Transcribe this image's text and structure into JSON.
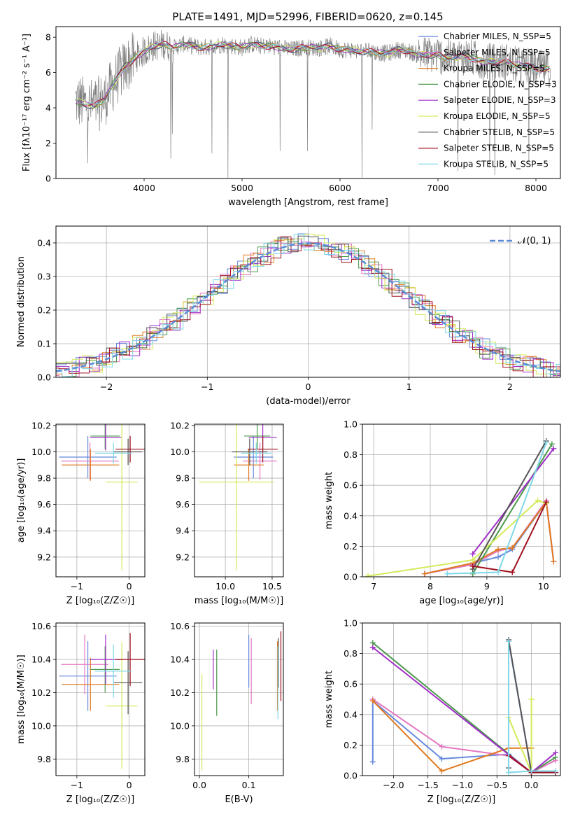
{
  "figure": {
    "title": "PLATE=1491, MJD=52996, FIBERID=0620, z=0.145"
  },
  "models": [
    {
      "name": "Chabrier MILES, N_SSP=5",
      "color": "#6688dd"
    },
    {
      "name": "Salpeter MILES, N_SSP=5",
      "color": "#e377c2"
    },
    {
      "name": "Kroupa MILES, N_SSP=5",
      "color": "#e07a20"
    },
    {
      "name": "Chabrier ELODIE, N_SSP=3",
      "color": "#4c9a4c"
    },
    {
      "name": "Salpeter ELODIE, N_SSP=3",
      "color": "#a12ec8"
    },
    {
      "name": "Kroupa ELODIE, N_SSP=5",
      "color": "#d4ea5a"
    },
    {
      "name": "Chabrier STELIB, N_SSP=5",
      "color": "#555555"
    },
    {
      "name": "Salpeter STELIB, N_SSP=5",
      "color": "#a01020"
    },
    {
      "name": "Kroupa STELIB, N_SSP=5",
      "color": "#7fd8e8"
    }
  ],
  "chart_data": [
    {
      "id": "spectrum",
      "type": "line",
      "xlabel": "wavelength [Angstrom, rest frame]",
      "ylabel": "Flux [fλ10⁻¹⁷ erg cm⁻² s⁻¹ A⁻¹]",
      "xlim": [
        3100,
        8250
      ],
      "ylim": [
        0,
        8.6
      ],
      "xticks": [
        "4000",
        "5000",
        "6000",
        "7000",
        "8000"
      ],
      "yticks": [
        "0",
        "2",
        "4",
        "6",
        "8"
      ],
      "data_color": "#808080",
      "data_x": [
        3300,
        3400,
        3500,
        3600,
        3700,
        3800,
        3900,
        4000,
        4100,
        4200,
        4300,
        4400,
        4500,
        4600,
        4700,
        4800,
        4900,
        5000,
        5100,
        5200,
        5300,
        5400,
        5500,
        5600,
        5700,
        5800,
        5900,
        6000,
        6100,
        6200,
        6300,
        6400,
        6500,
        6600,
        6700,
        6800,
        6900,
        7000,
        7100,
        7200,
        7300,
        7400,
        7500,
        7600,
        7700,
        7800,
        7900,
        8000,
        8100
      ],
      "data_y": [
        4.4,
        4.2,
        4.1,
        4.5,
        5.5,
        6.3,
        6.8,
        7.2,
        7.5,
        7.6,
        7.4,
        7.6,
        7.5,
        7.4,
        7.5,
        7.6,
        7.5,
        7.4,
        7.6,
        7.5,
        7.5,
        7.4,
        7.3,
        7.4,
        7.4,
        7.4,
        7.5,
        7.3,
        7.3,
        7.2,
        7.2,
        7.1,
        7.1,
        7.3,
        7.2,
        7.0,
        7.0,
        7.0,
        6.8,
        6.9,
        6.9,
        6.7,
        6.6,
        6.6,
        6.6,
        6.4,
        6.4,
        6.2,
        6.2
      ],
      "legend_position": "upper right",
      "grid": false
    },
    {
      "id": "residuals",
      "type": "step",
      "xlabel": "(data-model)/error",
      "ylabel": "Normed distribution",
      "xlim": [
        -2.5,
        2.5
      ],
      "ylim": [
        0,
        0.45
      ],
      "xticks": [
        "−2",
        "−1",
        "0",
        "1",
        "2"
      ],
      "yticks": [
        "0.0",
        "0.1",
        "0.2",
        "0.3",
        "0.4"
      ],
      "reference_curve": {
        "name": "𝒩(0, 1)",
        "mean": 0,
        "sigma": 1,
        "color": "#5b8bd6"
      },
      "legend_position": "upper right",
      "grid": true
    },
    {
      "id": "age_vs_Z",
      "type": "errorbar",
      "xlabel": "Z [log₁₀(Z/Z☉)]",
      "ylabel": "age  [log₁₀(age/yr)]",
      "xlim": [
        -1.4,
        0.3
      ],
      "ylim": [
        9.05,
        10.21
      ],
      "xticks": [
        "−1",
        "0"
      ],
      "yticks": [
        "9.2",
        "9.4",
        "9.6",
        "9.8",
        "10.0",
        "10.2"
      ],
      "grid": true,
      "points": [
        {
          "x": -0.79,
          "xerr": 0.55,
          "y": 9.96,
          "yerr": 0.16
        },
        {
          "x": -0.75,
          "xerr": 0.55,
          "y": 9.93,
          "yerr": 0.14
        },
        {
          "x": -0.74,
          "xerr": 0.55,
          "y": 9.9,
          "yerr": 0.12
        },
        {
          "x": -0.46,
          "xerr": 0.28,
          "y": 10.12,
          "yerr": 0.1
        },
        {
          "x": -0.45,
          "xerr": 0.3,
          "y": 10.11,
          "yerr": 0.1
        },
        {
          "x": -0.14,
          "xerr": 0.3,
          "y": 9.77,
          "yerr": 0.67
        },
        {
          "x": -0.02,
          "xerr": 0.27,
          "y": 10.0,
          "yerr": 0.1
        },
        {
          "x": 0.02,
          "xerr": 0.28,
          "y": 10.02,
          "yerr": 0.1
        },
        {
          "x": -0.3,
          "xerr": 0.35,
          "y": 9.99,
          "yerr": 0.08
        }
      ]
    },
    {
      "id": "age_vs_mass",
      "type": "errorbar",
      "xlabel": "mass [log₁₀(M/M☉)]",
      "ylabel": "",
      "xlim": [
        9.67,
        10.62
      ],
      "ylim": [
        9.05,
        10.21
      ],
      "xticks": [
        "10.0",
        "10.5"
      ],
      "yticks": [
        "9.2",
        "9.4",
        "9.6",
        "9.8",
        "10.0",
        "10.2"
      ],
      "grid": true,
      "points": [
        {
          "x": 10.3,
          "xerr": 0.21,
          "y": 9.96,
          "yerr": 0.16
        },
        {
          "x": 10.37,
          "xerr": 0.18,
          "y": 9.93,
          "yerr": 0.14
        },
        {
          "x": 10.25,
          "xerr": 0.16,
          "y": 9.9,
          "yerr": 0.12
        },
        {
          "x": 10.34,
          "xerr": 0.14,
          "y": 10.12,
          "yerr": 0.1
        },
        {
          "x": 10.4,
          "xerr": 0.15,
          "y": 10.11,
          "yerr": 0.1
        },
        {
          "x": 10.12,
          "xerr": 0.4,
          "y": 9.77,
          "yerr": 0.67
        },
        {
          "x": 10.26,
          "xerr": 0.19,
          "y": 10.0,
          "yerr": 0.1
        },
        {
          "x": 10.4,
          "xerr": 0.16,
          "y": 10.02,
          "yerr": 0.1
        },
        {
          "x": 10.33,
          "xerr": 0.16,
          "y": 9.99,
          "yerr": 0.08
        }
      ]
    },
    {
      "id": "mass_weight_vs_age",
      "type": "line",
      "xlabel": "age  [log₁₀(age/yr)]",
      "ylabel": "mass weight",
      "xlim": [
        6.8,
        10.3
      ],
      "ylim": [
        0,
        1.0
      ],
      "xticks": [
        "7",
        "8",
        "9",
        "10"
      ],
      "yticks": [
        "0.0",
        "0.2",
        "0.4",
        "0.6",
        "0.8",
        "1.0"
      ],
      "grid": true,
      "series": [
        {
          "model": 0,
          "x": [
            7.9,
            8.75,
            9.2,
            9.45,
            10.05,
            10.18
          ],
          "y": [
            0.02,
            0.09,
            0.13,
            0.18,
            0.49,
            0.1
          ]
        },
        {
          "model": 1,
          "x": [
            7.9,
            8.75,
            9.2,
            9.45,
            10.05,
            10.18
          ],
          "y": [
            0.02,
            0.08,
            0.17,
            0.19,
            0.5,
            0.1
          ]
        },
        {
          "model": 2,
          "x": [
            7.9,
            8.75,
            9.2,
            9.45,
            10.05,
            10.18
          ],
          "y": [
            0.02,
            0.09,
            0.18,
            0.19,
            0.49,
            0.1
          ]
        },
        {
          "model": 3,
          "x": [
            8.75,
            10.15
          ],
          "y": [
            0.02,
            0.87
          ]
        },
        {
          "model": 4,
          "x": [
            8.75,
            10.18
          ],
          "y": [
            0.15,
            0.84
          ]
        },
        {
          "model": 5,
          "x": [
            6.9,
            8.75,
            9.9,
            10.05
          ],
          "y": [
            0.005,
            0.11,
            0.5,
            0.48
          ]
        },
        {
          "model": 6,
          "x": [
            8.75,
            10.05
          ],
          "y": [
            0.05,
            0.89
          ]
        },
        {
          "model": 7,
          "x": [
            8.75,
            9.45,
            10.05
          ],
          "y": [
            0.07,
            0.03,
            0.49
          ]
        },
        {
          "model": 8,
          "x": [
            8.3,
            9.2,
            10.05
          ],
          "y": [
            0.02,
            0.03,
            0.88
          ]
        }
      ]
    },
    {
      "id": "mass_vs_Z",
      "type": "errorbar",
      "xlabel": "Z [log₁₀(Z/Z☉)]",
      "ylabel": "mass [log₁₀(M/M☉)]",
      "xlim": [
        -1.4,
        0.3
      ],
      "ylim": [
        9.7,
        10.62
      ],
      "xticks": [
        "−1",
        "0"
      ],
      "yticks": [
        "9.8",
        "10.0",
        "10.2",
        "10.4",
        "10.6"
      ],
      "grid": true,
      "points": [
        {
          "x": -0.79,
          "xerr": 0.55,
          "y": 10.3,
          "yerr": 0.21
        },
        {
          "x": -0.85,
          "xerr": 0.45,
          "y": 10.37,
          "yerr": 0.18
        },
        {
          "x": -0.74,
          "xerr": 0.55,
          "y": 10.25,
          "yerr": 0.16
        },
        {
          "x": -0.46,
          "xerr": 0.28,
          "y": 10.34,
          "yerr": 0.14
        },
        {
          "x": -0.45,
          "xerr": 0.3,
          "y": 10.4,
          "yerr": 0.15
        },
        {
          "x": -0.14,
          "xerr": 0.3,
          "y": 10.12,
          "yerr": 0.38
        },
        {
          "x": -0.02,
          "xerr": 0.27,
          "y": 10.26,
          "yerr": 0.19
        },
        {
          "x": 0.02,
          "xerr": 0.28,
          "y": 10.4,
          "yerr": 0.16
        },
        {
          "x": -0.3,
          "xerr": 0.35,
          "y": 10.33,
          "yerr": 0.16
        }
      ]
    },
    {
      "id": "mass_vs_EBV",
      "type": "errorbar",
      "xlabel": "E(B-V)",
      "ylabel": "",
      "xlim": [
        -0.01,
        0.17
      ],
      "ylim": [
        9.7,
        10.62
      ],
      "xticks": [
        "0.0",
        "0.1"
      ],
      "yticks": [
        "9.8",
        "10.0",
        "10.2",
        "10.4",
        "10.6"
      ],
      "grid": true,
      "points": [
        {
          "x": 0.1,
          "xerr": 0,
          "y": 10.39,
          "yerr": 0.16
        },
        {
          "x": 0.105,
          "xerr": 0,
          "y": 10.33,
          "yerr": 0.2
        },
        {
          "x": 0.158,
          "xerr": 0,
          "y": 10.3,
          "yerr": 0.21
        },
        {
          "x": 0.035,
          "xerr": 0,
          "y": 10.26,
          "yerr": 0.2
        },
        {
          "x": 0.028,
          "xerr": 0,
          "y": 10.34,
          "yerr": 0.12
        },
        {
          "x": 0.005,
          "xerr": 0,
          "y": 10.02,
          "yerr": 0.29
        },
        {
          "x": 0.16,
          "xerr": 0,
          "y": 10.38,
          "yerr": 0.15
        },
        {
          "x": 0.165,
          "xerr": 0,
          "y": 10.36,
          "yerr": 0.21
        },
        {
          "x": 0.159,
          "xerr": 0,
          "y": 10.26,
          "yerr": 0.22
        }
      ]
    },
    {
      "id": "mass_weight_vs_Z",
      "type": "line",
      "xlabel": "Z [log₁₀(Z/Z☉)]",
      "ylabel": "mass weight",
      "xlim": [
        -2.45,
        0.42
      ],
      "ylim": [
        0,
        1.0
      ],
      "xticks": [
        "−2.0",
        "−1.5",
        "−1.0",
        "−0.5",
        "0.0"
      ],
      "yticks": [
        "0.0",
        "0.2",
        "0.4",
        "0.6",
        "0.8",
        "1.0"
      ],
      "grid": true,
      "series": [
        {
          "model": 0,
          "x": [
            -2.3,
            -2.3,
            -1.3,
            -0.33,
            -0.33,
            0.0,
            0.35
          ],
          "y": [
            0.09,
            0.49,
            0.11,
            0.14,
            0.88,
            0.02,
            0.02
          ]
        },
        {
          "model": 1,
          "x": [
            -2.3,
            -1.3,
            -0.33,
            0.0,
            0.35
          ],
          "y": [
            0.5,
            0.19,
            0.13,
            0.02,
            0.1
          ]
        },
        {
          "model": 2,
          "x": [
            -2.3,
            -1.3,
            -0.33,
            0.0
          ],
          "y": [
            0.49,
            0.03,
            0.18,
            0.18
          ]
        },
        {
          "model": 3,
          "x": [
            -2.3,
            0.0,
            0.35
          ],
          "y": [
            0.87,
            0.02,
            0.12
          ]
        },
        {
          "model": 4,
          "x": [
            -2.3,
            0.0,
            0.35
          ],
          "y": [
            0.84,
            0.02,
            0.15
          ]
        },
        {
          "model": 5,
          "x": [
            -0.33,
            0.0,
            0.0
          ],
          "y": [
            0.38,
            0.02,
            0.5
          ]
        },
        {
          "model": 6,
          "x": [
            -0.33,
            -0.33,
            0.0
          ],
          "y": [
            0.05,
            0.89,
            0.02
          ]
        },
        {
          "model": 7,
          "x": [
            -0.33,
            0.0,
            0.35
          ],
          "y": [
            0.13,
            0.02,
            0.02
          ]
        },
        {
          "model": 8,
          "x": [
            -0.33,
            -0.33,
            0.0,
            0.35
          ],
          "y": [
            0.88,
            0.02,
            0.03,
            0.03
          ]
        }
      ]
    }
  ]
}
